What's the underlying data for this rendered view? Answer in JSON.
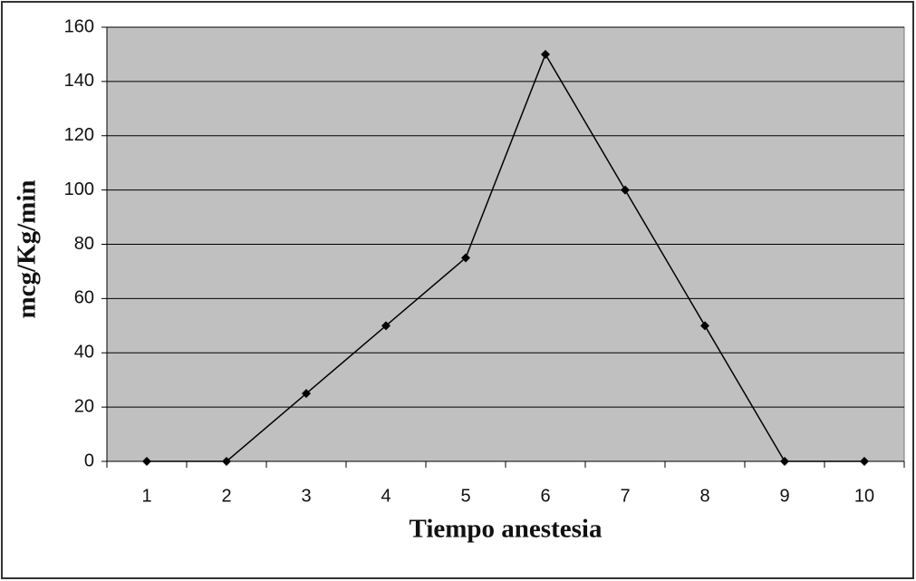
{
  "chart_data": {
    "type": "line",
    "x_label": "Tiempo anestesia",
    "y_label": "mcg/Kg/min",
    "categories": [
      "1",
      "2",
      "3",
      "4",
      "5",
      "6",
      "7",
      "8",
      "9",
      "10"
    ],
    "values": [
      0,
      0,
      25,
      50,
      75,
      150,
      100,
      50,
      0,
      0
    ],
    "color": "#000000",
    "plot_background": "#c0c0c0",
    "ylim": [
      0,
      160
    ],
    "yticks": [
      0,
      20,
      40,
      60,
      80,
      100,
      120,
      140,
      160
    ],
    "grid": true
  }
}
